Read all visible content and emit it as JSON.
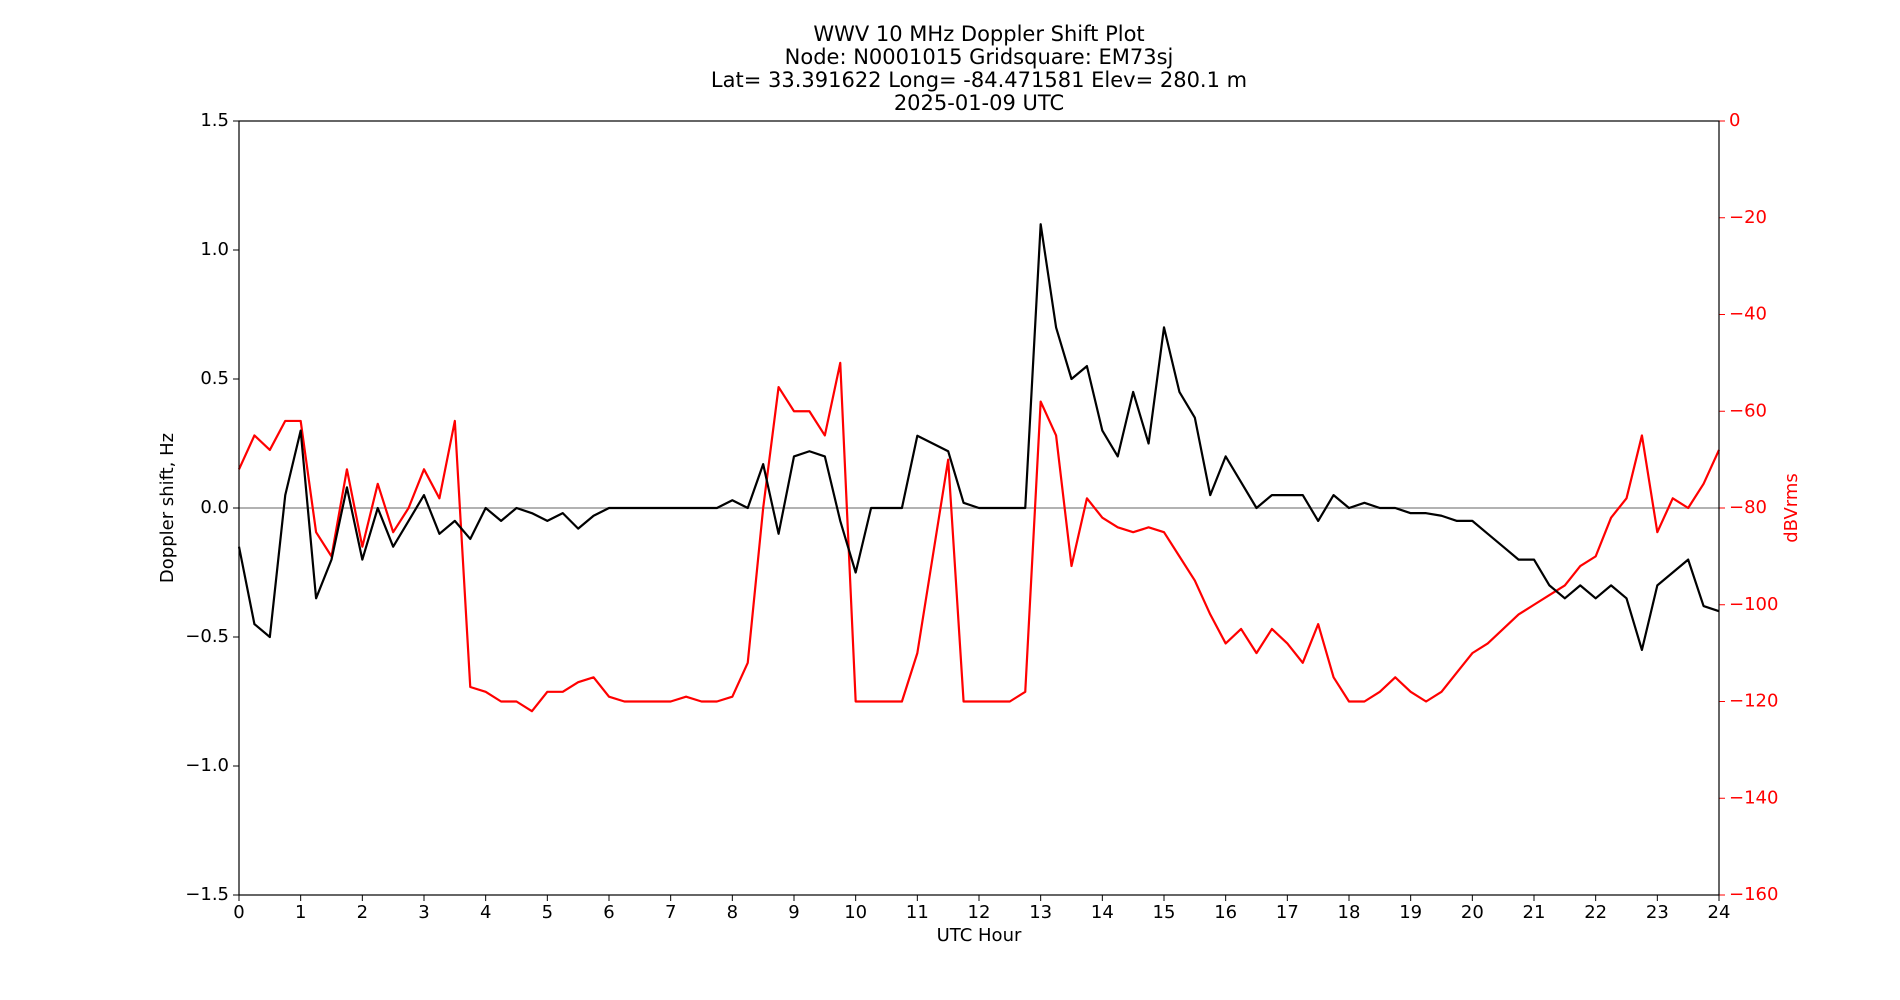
{
  "chart_data": {
    "type": "line",
    "title_lines": [
      "WWV 10 MHz Doppler Shift Plot",
      "Node:  N0001015     Gridsquare:  EM73sj",
      "Lat= 33.391622    Long= -84.471581    Elev= 280.1 m",
      "2025-01-09  UTC"
    ],
    "xlabel": "UTC Hour",
    "ylabel": "Doppler shift, Hz",
    "y2label": "dBVrms",
    "y2color": "#ff0000",
    "x": [
      0,
      0.25,
      0.5,
      0.75,
      1,
      1.25,
      1.5,
      1.75,
      2,
      2.25,
      2.5,
      2.75,
      3,
      3.25,
      3.5,
      3.75,
      4,
      4.25,
      4.5,
      4.75,
      5,
      5.25,
      5.5,
      5.75,
      6,
      6.25,
      6.5,
      6.75,
      7,
      7.25,
      7.5,
      7.75,
      8,
      8.25,
      8.5,
      8.75,
      9,
      9.25,
      9.5,
      9.75,
      10,
      10.25,
      10.5,
      10.75,
      11,
      11.25,
      11.5,
      11.75,
      12,
      12.25,
      12.5,
      12.75,
      13,
      13.25,
      13.5,
      13.75,
      14,
      14.25,
      14.5,
      14.75,
      15,
      15.25,
      15.5,
      15.75,
      16,
      16.25,
      16.5,
      16.75,
      17,
      17.25,
      17.5,
      17.75,
      18,
      18.25,
      18.5,
      18.75,
      19,
      19.25,
      19.5,
      19.75,
      20,
      20.25,
      20.5,
      20.75,
      21,
      21.25,
      21.5,
      21.75,
      22,
      22.25,
      22.5,
      22.75,
      23,
      23.25,
      23.5,
      23.75,
      24
    ],
    "series": [
      {
        "color": "#000000",
        "axis": "y",
        "values": [
          -0.15,
          -0.45,
          -0.5,
          0.05,
          0.3,
          -0.35,
          -0.2,
          0.08,
          -0.2,
          0.0,
          -0.15,
          -0.05,
          0.05,
          -0.1,
          -0.05,
          -0.12,
          0.0,
          -0.05,
          0.0,
          -0.02,
          -0.05,
          -0.02,
          -0.08,
          -0.03,
          0.0,
          0.0,
          0.0,
          0.0,
          0.0,
          0.0,
          0.0,
          0.0,
          0.03,
          0.0,
          0.17,
          -0.1,
          0.2,
          0.22,
          0.2,
          -0.05,
          -0.25,
          0.0,
          0.0,
          0.0,
          0.28,
          0.25,
          0.22,
          0.02,
          0.0,
          0.0,
          0.0,
          0.0,
          1.1,
          0.7,
          0.5,
          0.55,
          0.3,
          0.2,
          0.45,
          0.25,
          0.7,
          0.45,
          0.35,
          0.05,
          0.2,
          0.1,
          0.0,
          0.05,
          0.05,
          0.05,
          -0.05,
          0.05,
          0.0,
          0.02,
          0.0,
          0.0,
          -0.02,
          -0.02,
          -0.03,
          -0.05,
          -0.05,
          -0.1,
          -0.15,
          -0.2,
          -0.2,
          -0.3,
          -0.35,
          -0.3,
          -0.35,
          -0.3,
          -0.35,
          -0.55,
          -0.3,
          -0.25,
          -0.2,
          -0.38,
          -0.4
        ]
      },
      {
        "color": "#ff0000",
        "axis": "y2",
        "values": [
          -72,
          -65,
          -68,
          -62,
          -62,
          -85,
          -90,
          -72,
          -88,
          -75,
          -85,
          -80,
          -72,
          -78,
          -62,
          -117,
          -118,
          -120,
          -120,
          -122,
          -118,
          -118,
          -116,
          -115,
          -119,
          -120,
          -120,
          -120,
          -120,
          -119,
          -120,
          -120,
          -119,
          -112,
          -80,
          -55,
          -60,
          -60,
          -65,
          -50,
          -120,
          -120,
          -120,
          -120,
          -110,
          -90,
          -70,
          -120,
          -120,
          -120,
          -120,
          -118,
          -58,
          -65,
          -92,
          -78,
          -82,
          -84,
          -85,
          -84,
          -85,
          -90,
          -95,
          -102,
          -108,
          -105,
          -110,
          -105,
          -108,
          -112,
          -104,
          -115,
          -120,
          -120,
          -118,
          -115,
          -118,
          -120,
          -118,
          -114,
          -110,
          -108,
          -105,
          -102,
          -100,
          -98,
          -96,
          -92,
          -90,
          -82,
          -78,
          -65,
          -85,
          -78,
          -80,
          -75,
          -68
        ]
      }
    ],
    "zero_line": 0,
    "xlim": [
      0,
      24
    ],
    "xticks": [
      0,
      1,
      2,
      3,
      4,
      5,
      6,
      7,
      8,
      9,
      10,
      11,
      12,
      13,
      14,
      15,
      16,
      17,
      18,
      19,
      20,
      21,
      22,
      23,
      24
    ],
    "ylim": [
      -1.5,
      1.5
    ],
    "yticks": [
      {
        "value": -1.5,
        "label": "−1.5"
      },
      {
        "value": -1.0,
        "label": "−1.0"
      },
      {
        "value": -0.5,
        "label": "−0.5"
      },
      {
        "value": 0,
        "label": "0.0"
      },
      {
        "value": 0.5,
        "label": "0.5"
      },
      {
        "value": 1.0,
        "label": "1.0"
      },
      {
        "value": 1.5,
        "label": "1.5"
      }
    ],
    "y2lim": [
      -160,
      0
    ],
    "y2ticks": [
      {
        "value": -160,
        "label": "−160"
      },
      {
        "value": -140,
        "label": "−140"
      },
      {
        "value": -120,
        "label": "−120"
      },
      {
        "value": -100,
        "label": "−100"
      },
      {
        "value": -80,
        "label": "−80"
      },
      {
        "value": -60,
        "label": "−60"
      },
      {
        "value": -40,
        "label": "−40"
      },
      {
        "value": -20,
        "label": "−20"
      },
      0
    ]
  }
}
